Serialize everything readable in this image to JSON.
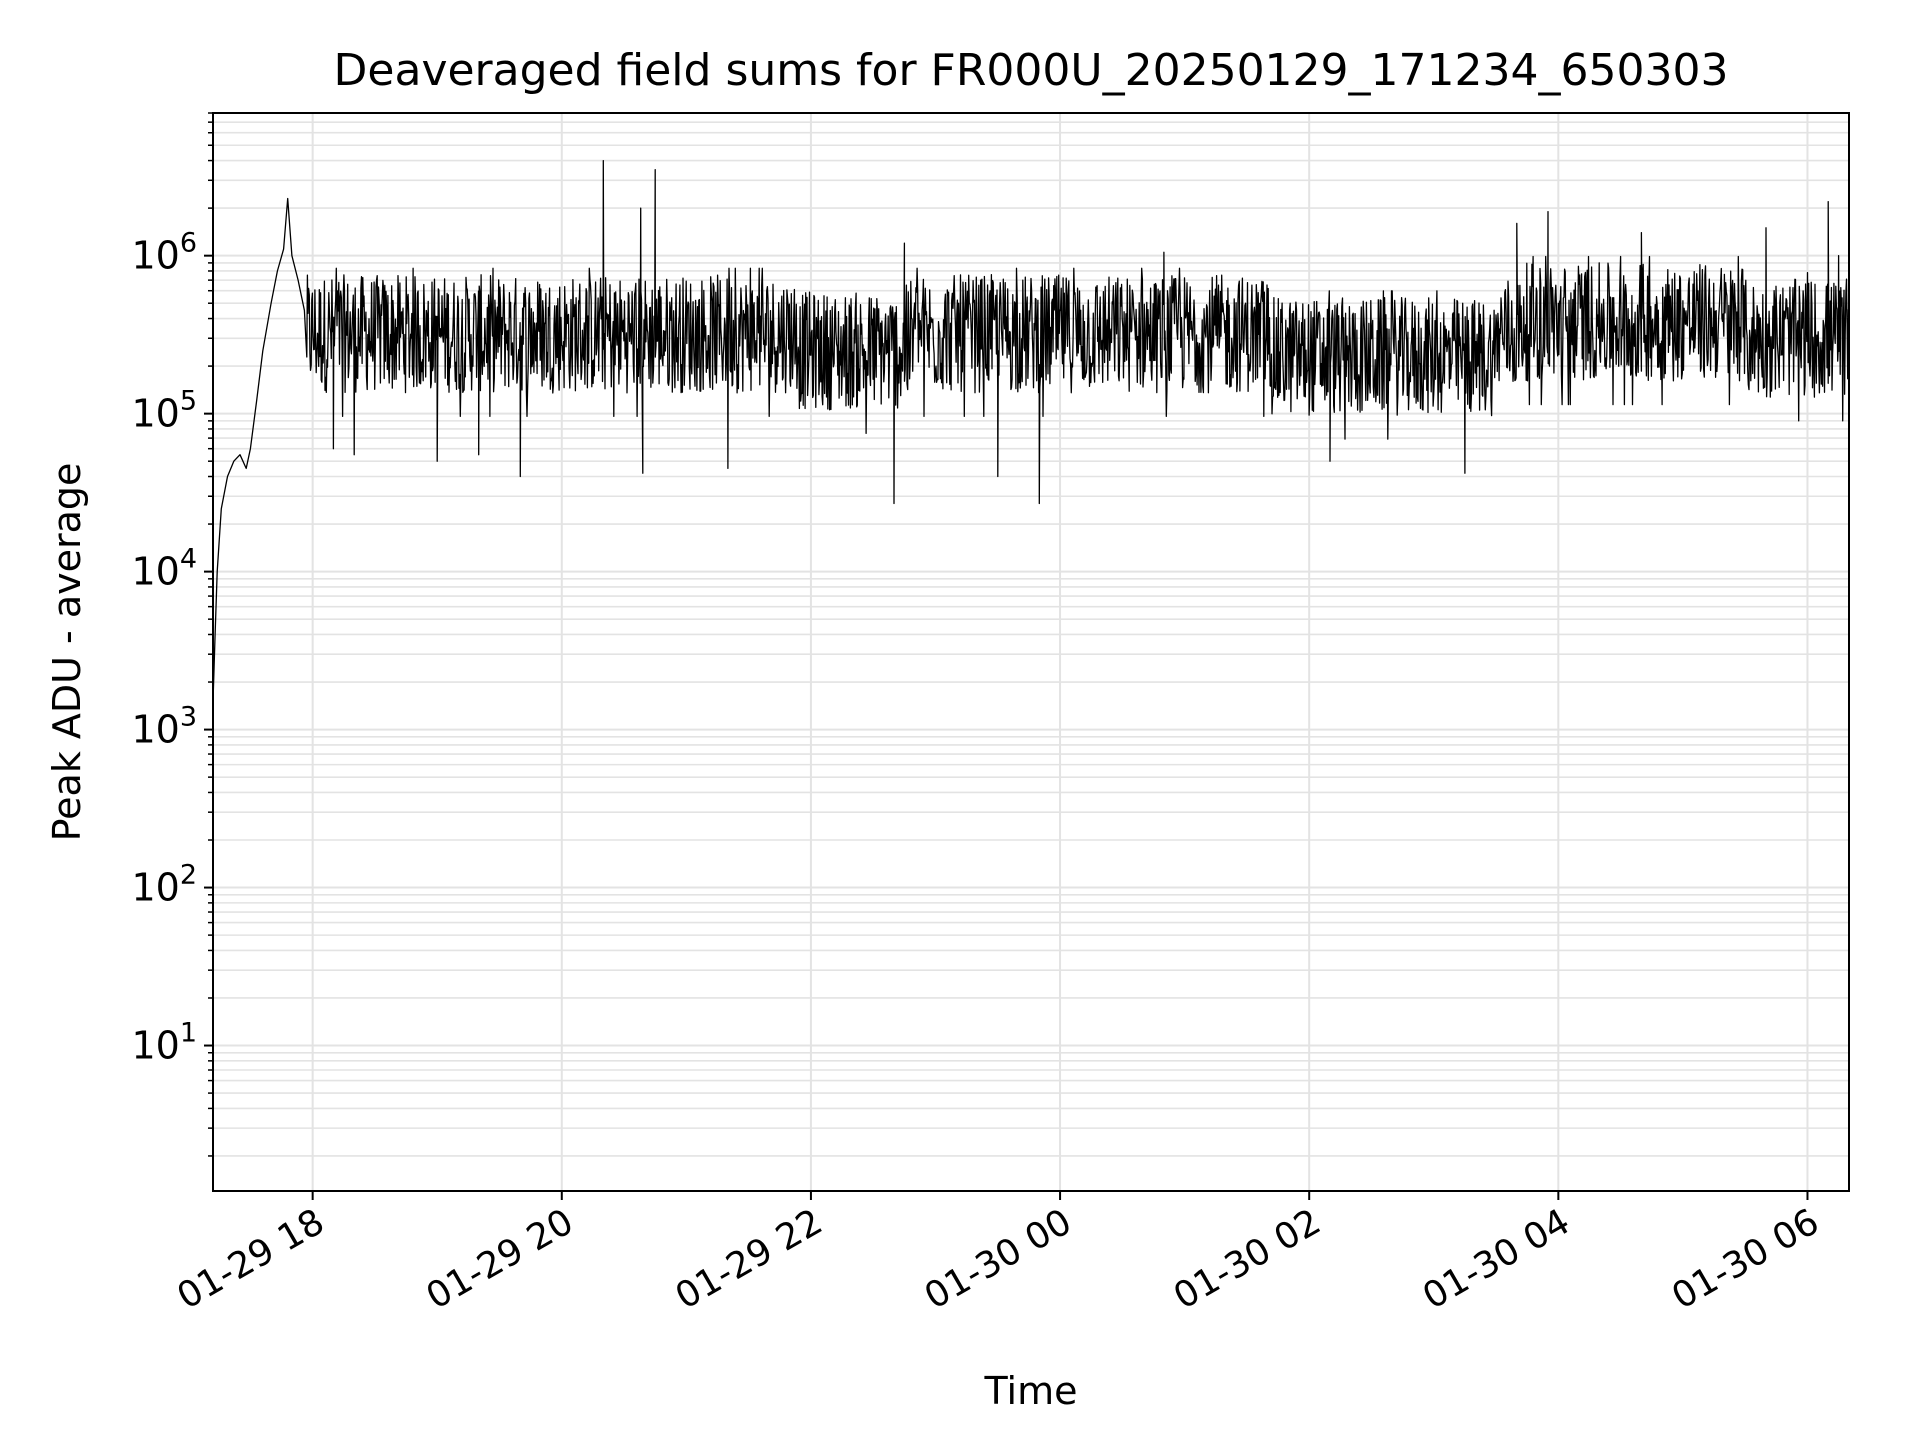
{
  "chart_data": {
    "type": "line",
    "title": "Deaveraged field sums for FR000U_20250129_171234_650303",
    "xlabel": "Time",
    "ylabel": "Peak ADU - average",
    "x_range": [
      "2025-01-29 17:12",
      "2025-01-30 06:20"
    ],
    "y_scale": "log",
    "ylim": [
      1.2,
      8000000
    ],
    "grid": true,
    "line_color": "#000000",
    "x_ticks": [
      {
        "t": "2025-01-29 18:00",
        "label": "01-29 18"
      },
      {
        "t": "2025-01-29 20:00",
        "label": "01-29 20"
      },
      {
        "t": "2025-01-29 22:00",
        "label": "01-29 22"
      },
      {
        "t": "2025-01-30 00:00",
        "label": "01-30 00"
      },
      {
        "t": "2025-01-30 02:00",
        "label": "01-30 02"
      },
      {
        "t": "2025-01-30 04:00",
        "label": "01-30 04"
      },
      {
        "t": "2025-01-30 06:00",
        "label": "01-30 06"
      }
    ],
    "y_ticks": [
      {
        "v": 10,
        "base": "10",
        "exp": "1"
      },
      {
        "v": 100,
        "base": "10",
        "exp": "2"
      },
      {
        "v": 1000,
        "base": "10",
        "exp": "3"
      },
      {
        "v": 10000,
        "base": "10",
        "exp": "4"
      },
      {
        "v": 100000,
        "base": "10",
        "exp": "5"
      },
      {
        "v": 1000000,
        "base": "10",
        "exp": "6"
      }
    ],
    "series": [
      {
        "points": [
          [
            "2025-01-29 17:12",
            1500
          ],
          [
            "2025-01-29 17:13",
            4000
          ],
          [
            "2025-01-29 17:14",
            10000
          ],
          [
            "2025-01-29 17:16",
            25000
          ],
          [
            "2025-01-29 17:19",
            40000
          ],
          [
            "2025-01-29 17:22",
            50000
          ],
          [
            "2025-01-29 17:25",
            55000
          ],
          [
            "2025-01-29 17:28",
            45000
          ],
          [
            "2025-01-29 17:30",
            60000
          ],
          [
            "2025-01-29 17:33",
            120000
          ],
          [
            "2025-01-29 17:36",
            250000
          ],
          [
            "2025-01-29 17:40",
            500000
          ],
          [
            "2025-01-29 17:43",
            800000
          ],
          [
            "2025-01-29 17:46",
            1100000
          ],
          [
            "2025-01-29 17:48",
            2300000
          ],
          [
            "2025-01-29 17:50",
            1000000
          ],
          [
            "2025-01-29 17:53",
            700000
          ],
          [
            "2025-01-29 17:56",
            450000
          ],
          [
            "2025-01-29 18:00",
            350000
          ],
          [
            "2025-01-29 18:10",
            60000
          ],
          [
            "2025-01-29 18:20",
            55000
          ],
          [
            "2025-01-29 19:00",
            50000
          ],
          [
            "2025-01-29 19:20",
            55000
          ],
          [
            "2025-01-29 19:40",
            40000
          ],
          [
            "2025-01-29 20:20",
            4000000
          ],
          [
            "2025-01-29 20:38",
            2000000
          ],
          [
            "2025-01-29 20:39",
            42000
          ],
          [
            "2025-01-29 20:45",
            3500000
          ],
          [
            "2025-01-29 21:20",
            45000
          ],
          [
            "2025-01-29 22:40",
            27000
          ],
          [
            "2025-01-29 22:45",
            1200000
          ],
          [
            "2025-01-29 23:30",
            40000
          ],
          [
            "2025-01-29 23:50",
            27000
          ],
          [
            "2025-01-30 00:50",
            1050000
          ],
          [
            "2025-01-30 02:10",
            50000
          ],
          [
            "2025-01-30 03:15",
            42000
          ],
          [
            "2025-01-30 03:40",
            1600000
          ],
          [
            "2025-01-30 03:55",
            1900000
          ],
          [
            "2025-01-30 04:40",
            1400000
          ],
          [
            "2025-01-30 05:40",
            1500000
          ],
          [
            "2025-01-30 06:10",
            2200000
          ],
          [
            "2025-01-30 06:15",
            1000000
          ],
          [
            "2025-01-30 06:20",
            150000
          ]
        ]
      }
    ]
  }
}
